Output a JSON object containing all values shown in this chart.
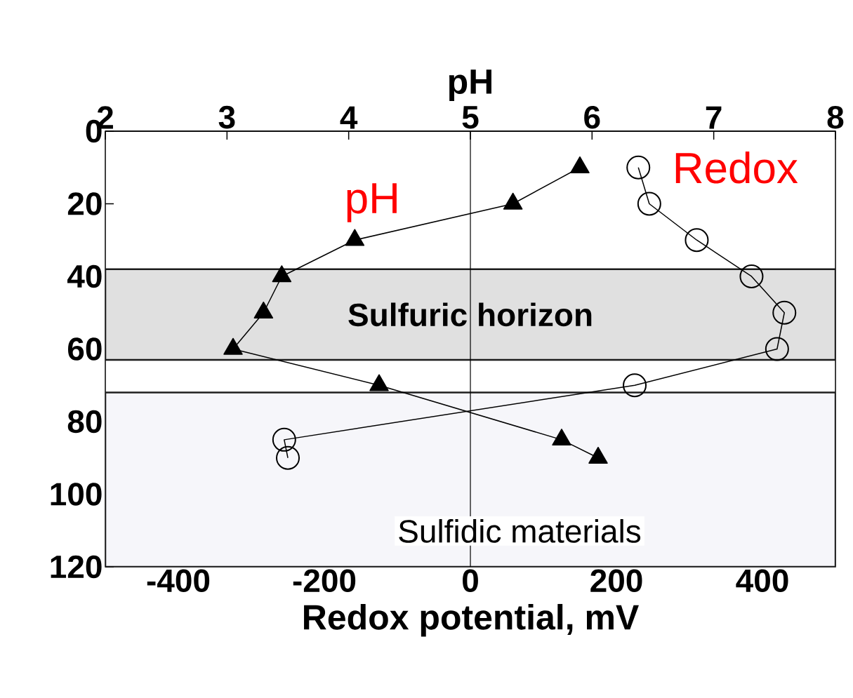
{
  "chart_data": {
    "type": "line",
    "xlabel": "Redox potential, mV",
    "x2label": "pH",
    "xlim": [
      -500,
      500
    ],
    "xticks": [
      -400,
      -200,
      0,
      200,
      400
    ],
    "x2lim": [
      2,
      8
    ],
    "x2ticks": [
      2,
      3,
      4,
      5,
      6,
      7,
      8
    ],
    "ylim": [
      120,
      0
    ],
    "yticks": [
      0,
      20,
      40,
      60,
      80,
      100,
      120
    ],
    "series": [
      {
        "name": "pH",
        "axis": "x2",
        "color": "#000000",
        "marker": "triangle",
        "x": [
          5.9,
          5.35,
          4.05,
          3.45,
          3.3,
          3.05,
          4.25,
          5.75,
          6.05
        ],
        "values": [
          10,
          20,
          30,
          40,
          50,
          60,
          70,
          85,
          90
        ]
      },
      {
        "name": "Redox",
        "color": "#000000",
        "marker": "circle",
        "x": [
          230,
          245,
          310,
          385,
          430,
          420,
          225,
          -255,
          -250
        ],
        "values": [
          10,
          20,
          30,
          40,
          50,
          60,
          70,
          85,
          90
        ]
      }
    ],
    "ref_lines": [
      {
        "axis": "x",
        "value": 0
      }
    ],
    "bands": [
      {
        "axis": "y",
        "from": 38,
        "to": 63,
        "label": "Sulfuric horizon",
        "color": "#e0e0e0"
      },
      {
        "axis": "y",
        "from": 72,
        "to": 120,
        "label": "Sulfidic materials",
        "color": "#f6f6fa"
      }
    ]
  }
}
